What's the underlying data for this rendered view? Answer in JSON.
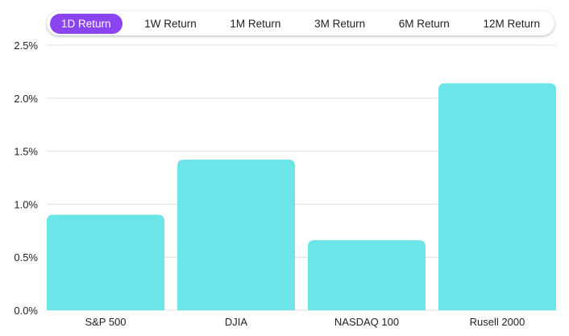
{
  "tabs": [
    {
      "label": "1D Return",
      "active": true
    },
    {
      "label": "1W Return",
      "active": false
    },
    {
      "label": "1M Return",
      "active": false
    },
    {
      "label": "3M Return",
      "active": false
    },
    {
      "label": "6M Return",
      "active": false
    },
    {
      "label": "12M Return",
      "active": false
    }
  ],
  "colors": {
    "bar": "#6ce5e8",
    "active_tab": "#8b45f0",
    "grid": "#dddddd"
  },
  "chart_data": {
    "type": "bar",
    "title": "",
    "categories": [
      "S&P 500",
      "DJIA",
      "NASDAQ 100",
      "Rusell 2000"
    ],
    "values": [
      0.9,
      1.42,
      0.66,
      2.14
    ],
    "unit": "%",
    "xlabel": "",
    "ylabel": "",
    "ylim": [
      0,
      2.5
    ],
    "yticks": [
      0,
      0.5,
      1.0,
      1.5,
      2.0,
      2.5
    ],
    "ytick_labels": [
      "0.0%",
      "0.5%",
      "1.0%",
      "1.5%",
      "2.0%",
      "2.5%"
    ],
    "grid": true,
    "legend": "none"
  }
}
